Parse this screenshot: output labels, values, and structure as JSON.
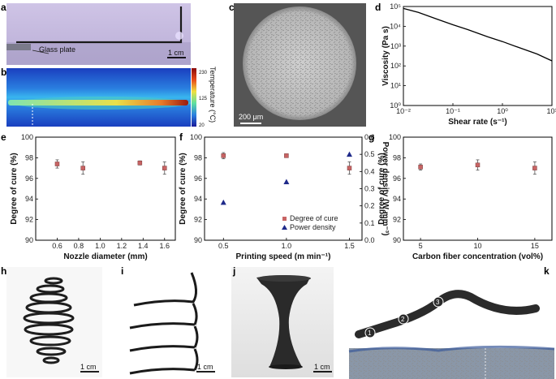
{
  "panel_labels": [
    "a",
    "b",
    "c",
    "d",
    "e",
    "f",
    "g",
    "h",
    "i",
    "j",
    "k"
  ],
  "panel_a": {
    "glass_plate_label": "Glass plate",
    "scale_bar": "1 cm"
  },
  "panel_b": {
    "colorbar_label": "Temperature (°C)",
    "colorbar_ticks": [
      "230",
      "125",
      "20"
    ]
  },
  "panel_c": {
    "scale_bar": "200 μm"
  },
  "panel_h": {
    "scale_bar": "1 cm"
  },
  "panel_i": {
    "scale_bar": "1 cm"
  },
  "panel_j": {
    "scale_bar": "1 cm"
  },
  "panel_k": {
    "markers": [
      "1",
      "2",
      "3"
    ]
  },
  "colors": {
    "cure_marker": "#c86464",
    "power_marker": "#1f2a8a",
    "errorbar": "#555555",
    "line": "#000000"
  },
  "chart_data": [
    {
      "panel": "d",
      "type": "line",
      "xscale": "log",
      "yscale": "log",
      "xlabel": "Shear rate (s⁻¹)",
      "ylabel": "Viscosity (Pa s)",
      "xlim": [
        0.01,
        10
      ],
      "ylim": [
        1,
        100000
      ],
      "xticks": [
        0.01,
        0.1,
        1,
        10
      ],
      "xticklabels": [
        "10⁻²",
        "10⁻¹",
        "10⁰",
        "10¹"
      ],
      "yticks": [
        1,
        10,
        100,
        1000,
        10000,
        100000
      ],
      "yticklabels": [
        "10⁰",
        "10¹",
        "10²",
        "10³",
        "10⁴",
        "10⁵"
      ],
      "series": [
        {
          "x": [
            0.01,
            0.02,
            0.05,
            0.1,
            0.2,
            0.5,
            1,
            2,
            5,
            10
          ],
          "y": [
            80000,
            50000,
            22000,
            12000,
            6800,
            3000,
            1700,
            900,
            400,
            180
          ]
        }
      ]
    },
    {
      "panel": "e",
      "type": "scatter",
      "xlabel": "Nozzle diameter (mm)",
      "ylabel": "Degree of cure (%)",
      "xlim": [
        0.4,
        1.7
      ],
      "ylim": [
        90,
        100
      ],
      "xticks": [
        0.6,
        0.8,
        1.0,
        1.2,
        1.4,
        1.6
      ],
      "xticklabels": [
        "0.6",
        "0.8",
        "1.0",
        "1.2",
        "1.4",
        "1.6"
      ],
      "yticks": [
        90,
        92,
        94,
        96,
        98,
        100
      ],
      "yticklabels": [
        "90",
        "92",
        "94",
        "96",
        "98",
        "100"
      ],
      "series": [
        {
          "x": [
            0.6,
            0.84,
            1.37,
            1.6
          ],
          "y": [
            97.4,
            97.0,
            97.5,
            97.0
          ],
          "err": [
            0.4,
            0.6,
            0.2,
            0.6
          ]
        }
      ]
    },
    {
      "panel": "f",
      "type": "scatter",
      "xlabel": "Printing speed (m min⁻¹)",
      "ylabel": "Degree of cure (%)",
      "y2label": "Power density (W mm⁻³)",
      "xlim": [
        0.35,
        1.6
      ],
      "ylim": [
        90,
        100
      ],
      "y2lim": [
        0,
        0.6
      ],
      "xticks": [
        0.5,
        1.0,
        1.5
      ],
      "xticklabels": [
        "0.5",
        "1.0",
        "1.5"
      ],
      "yticks": [
        90,
        92,
        94,
        96,
        98,
        100
      ],
      "yticklabels": [
        "90",
        "92",
        "94",
        "96",
        "98",
        "100"
      ],
      "y2ticks": [
        0,
        0.1,
        0.2,
        0.3,
        0.4,
        0.5,
        0.6
      ],
      "y2ticklabels": [
        "0.0",
        "0.1",
        "0.2",
        "0.3",
        "0.4",
        "0.5",
        "0.6"
      ],
      "legend": [
        "Degree of cure",
        "Power density"
      ],
      "series": [
        {
          "name": "Degree of cure",
          "axis": "left",
          "x": [
            0.5,
            1.0,
            1.5
          ],
          "y": [
            98.2,
            98.2,
            97.0
          ],
          "err": [
            0.3,
            0.1,
            0.6
          ]
        },
        {
          "name": "Power density",
          "axis": "right",
          "x": [
            0.5,
            1.0,
            1.5
          ],
          "y": [
            0.22,
            0.34,
            0.5
          ]
        }
      ]
    },
    {
      "panel": "g",
      "type": "scatter",
      "xlabel": "Carbon fiber concentration (vol%)",
      "ylabel": "Degree of cure (%)",
      "xlim": [
        3.5,
        16.5
      ],
      "ylim": [
        90,
        100
      ],
      "xticks": [
        5,
        10,
        15
      ],
      "xticklabels": [
        "5",
        "10",
        "15"
      ],
      "yticks": [
        90,
        92,
        94,
        96,
        98,
        100
      ],
      "yticklabels": [
        "90",
        "92",
        "94",
        "96",
        "98",
        "100"
      ],
      "series": [
        {
          "x": [
            5,
            10,
            15
          ],
          "y": [
            97.1,
            97.3,
            97.0
          ],
          "err": [
            0.3,
            0.5,
            0.6
          ]
        }
      ]
    }
  ]
}
